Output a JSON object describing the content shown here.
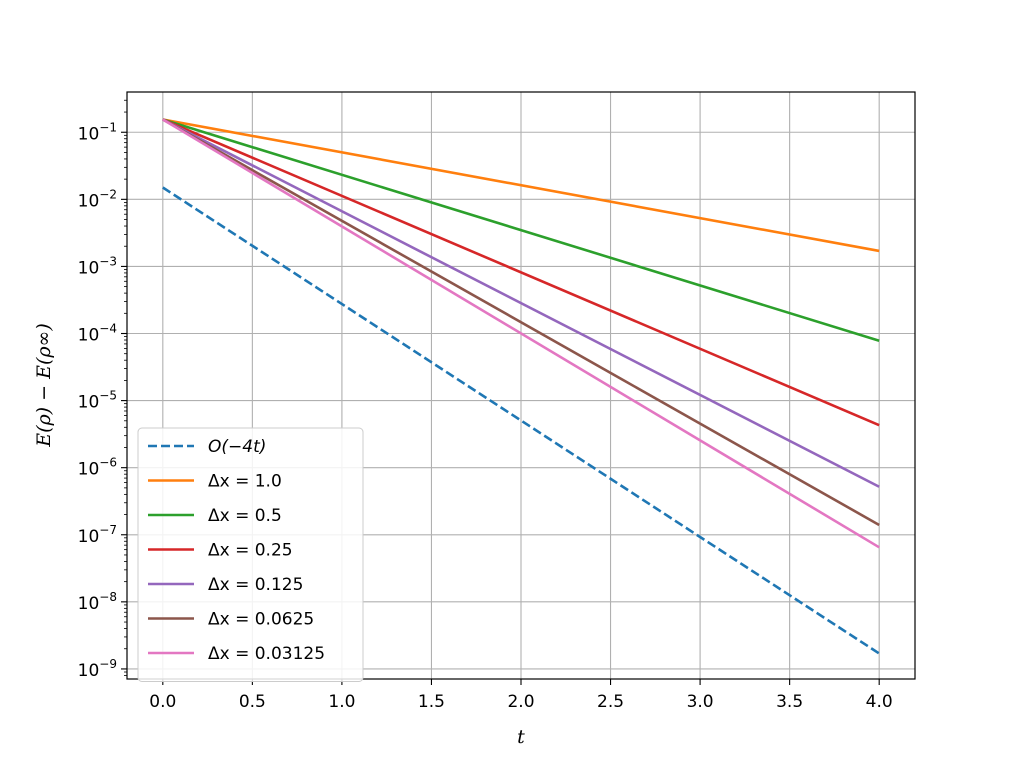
{
  "chart_data": {
    "type": "line",
    "xlabel": "t",
    "ylabel": "E(ρ) − E(ρ∞)",
    "xlim": [
      -0.2,
      4.2
    ],
    "ylim_log10": [
      -9.15,
      -0.4
    ],
    "yscale": "log",
    "grid": true,
    "legend_placement": "lower-left",
    "x_ticks": [
      0.0,
      0.5,
      1.0,
      1.5,
      2.0,
      2.5,
      3.0,
      3.5,
      4.0
    ],
    "x_tick_labels": [
      "0.0",
      "0.5",
      "1.0",
      "1.5",
      "2.0",
      "2.5",
      "3.0",
      "3.5",
      "4.0"
    ],
    "y_tick_exponents": [
      -1,
      -2,
      -3,
      -4,
      -5,
      -6,
      -7,
      -8,
      -9
    ],
    "y_tick_base": "10",
    "series": [
      {
        "name": "O(−4t)",
        "color": "#1f77b4",
        "dash": true,
        "x": [
          0,
          4
        ],
        "y": [
          0.015,
          1.7e-09
        ]
      },
      {
        "name": "Δx = 1.0",
        "color": "#ff7f0e",
        "dash": false,
        "x": [
          0,
          4
        ],
        "y": [
          0.155,
          0.0017
        ]
      },
      {
        "name": "Δx = 0.5",
        "color": "#2ca02c",
        "dash": false,
        "x": [
          0,
          4
        ],
        "y": [
          0.155,
          7.8e-05
        ]
      },
      {
        "name": "Δx = 0.25",
        "color": "#d62728",
        "dash": false,
        "x": [
          0,
          4
        ],
        "y": [
          0.155,
          4.3e-06
        ]
      },
      {
        "name": "Δx = 0.125",
        "color": "#9467bd",
        "dash": false,
        "x": [
          0,
          4
        ],
        "y": [
          0.155,
          5.2e-07
        ]
      },
      {
        "name": "Δx = 0.0625",
        "color": "#8c564b",
        "dash": false,
        "x": [
          0,
          4
        ],
        "y": [
          0.155,
          1.4e-07
        ]
      },
      {
        "name": "Δx = 0.03125",
        "color": "#e377c2",
        "dash": false,
        "x": [
          0,
          4
        ],
        "y": [
          0.155,
          6.5e-08
        ]
      }
    ]
  }
}
